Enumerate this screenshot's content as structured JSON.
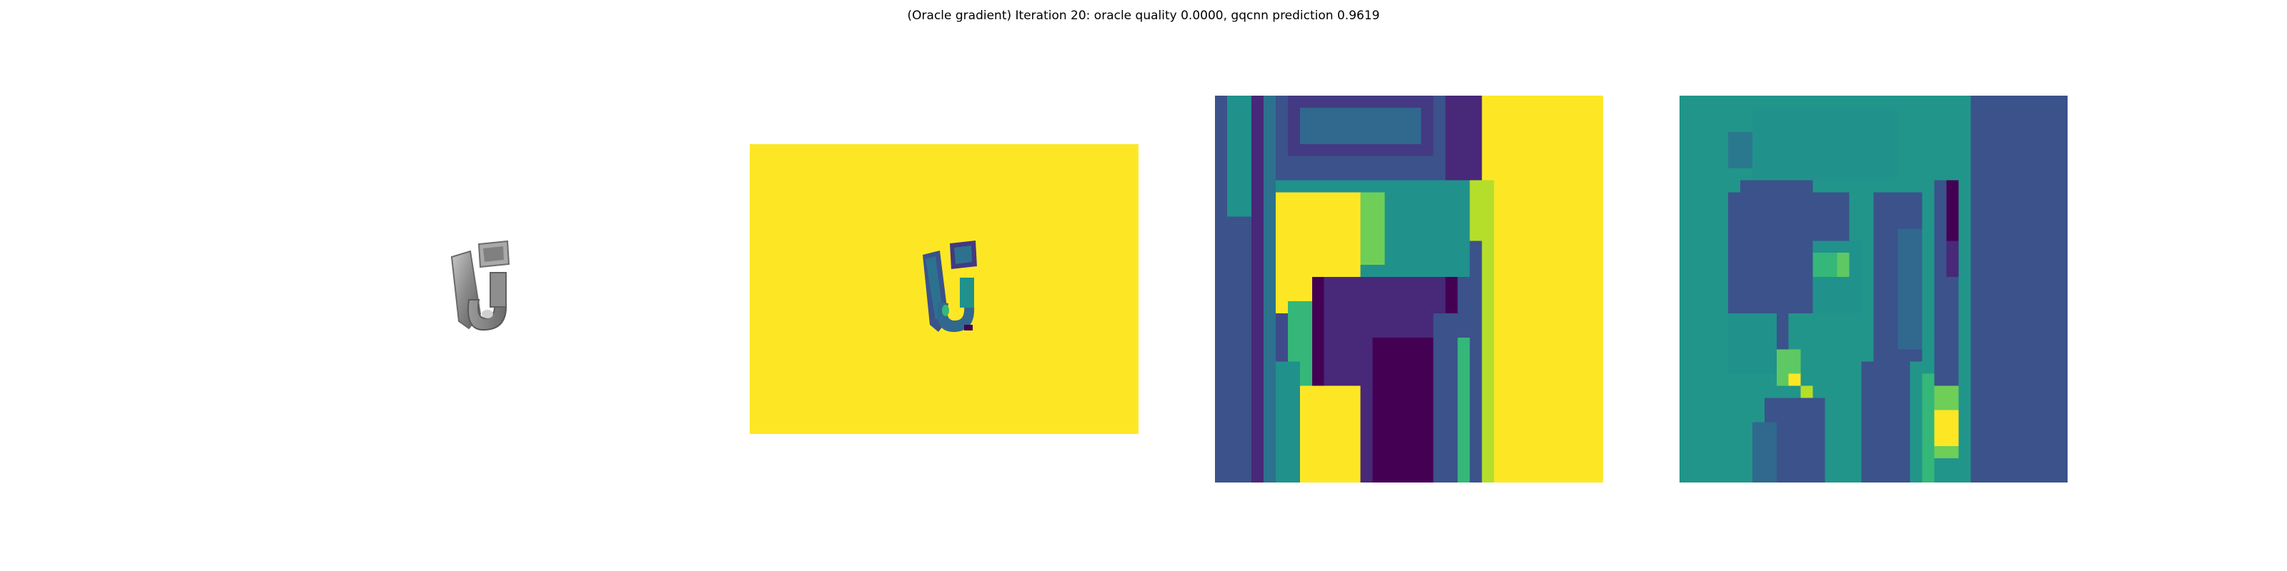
{
  "figure": {
    "title": "(Oracle gradient) Iteration 20: oracle quality 0.0000, gqcnn prediction 0.9619"
  },
  "colors": {
    "viridis_yellow": "#fde725",
    "viridis_dark": "#440154",
    "viridis_teal": "#21918c",
    "viridis_blue": "#3b528b",
    "object_gray": "#8c8c8c"
  },
  "panels": [
    {
      "id": "object-render",
      "kind": "grayscale object rendering"
    },
    {
      "id": "depth-image",
      "kind": "viridis depth image"
    },
    {
      "id": "depth-crop",
      "kind": "viridis cropped depth patch"
    },
    {
      "id": "gradient-map",
      "kind": "viridis gradient map"
    }
  ]
}
